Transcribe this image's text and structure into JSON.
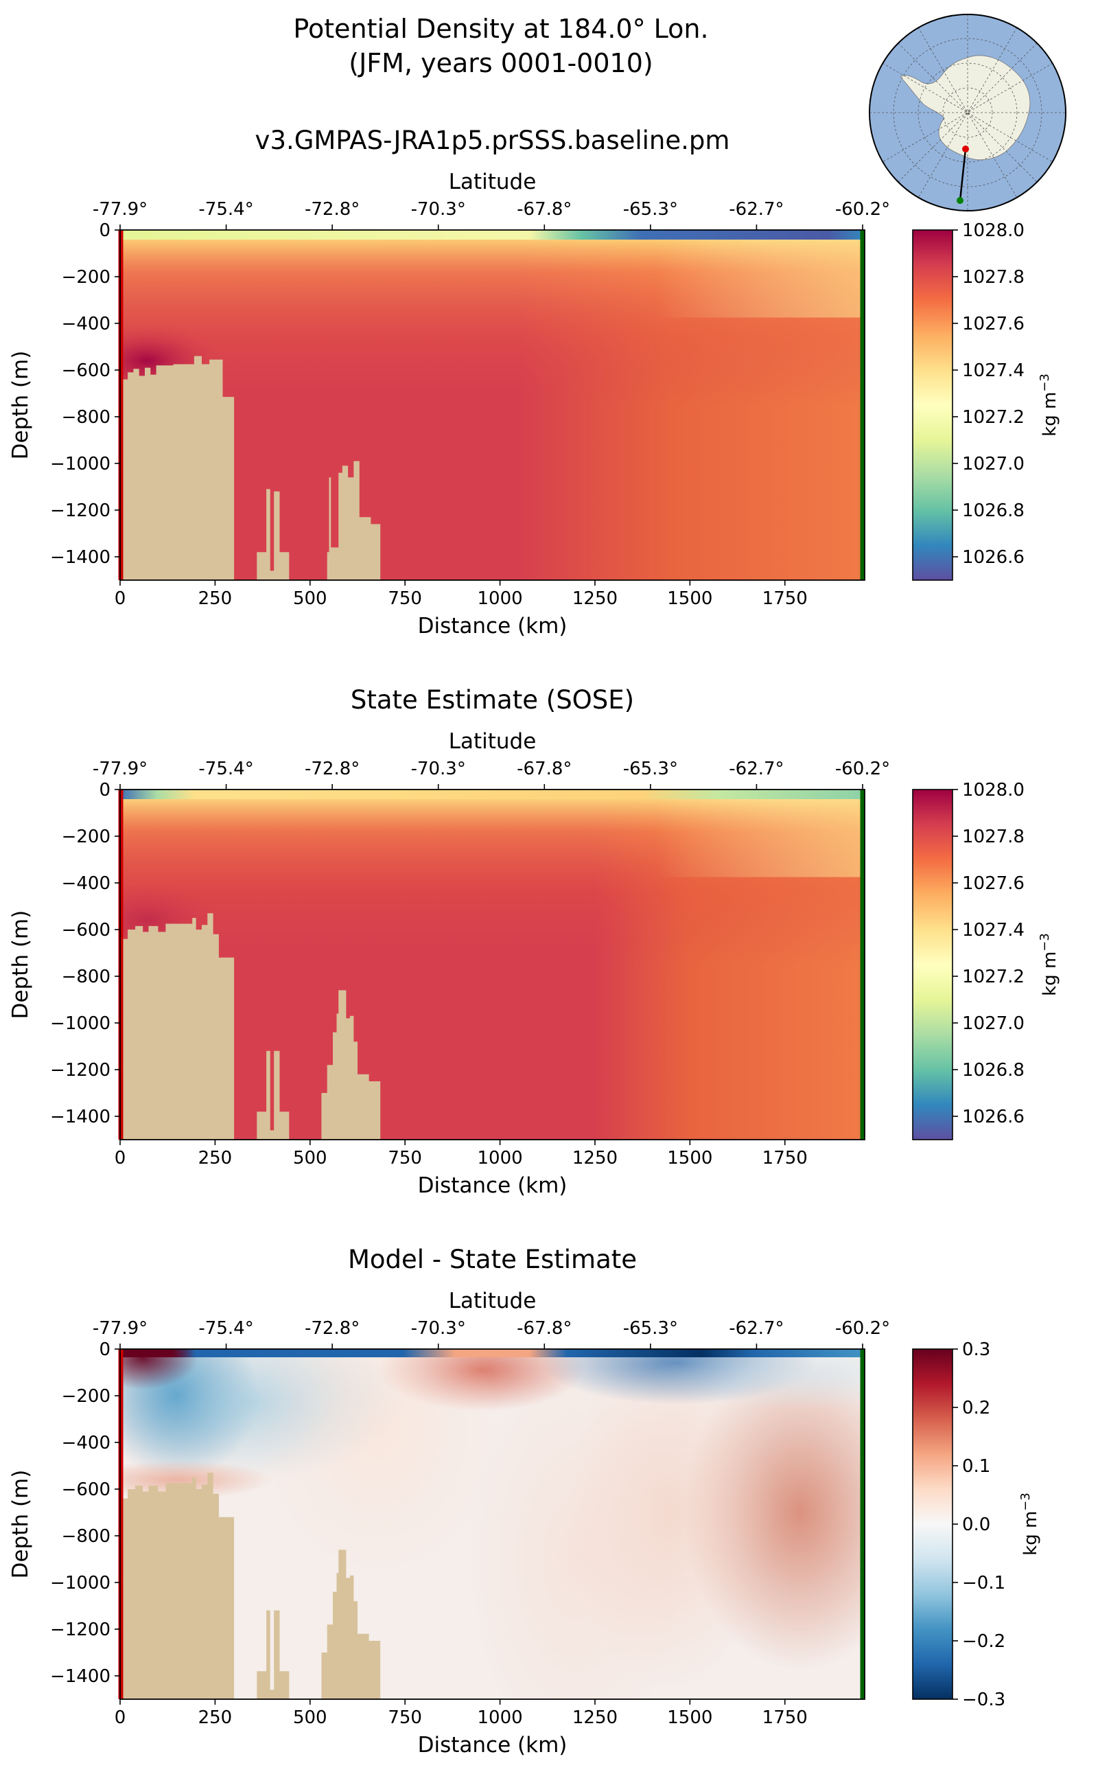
{
  "figure": {
    "title_line1": "Potential Density at 184.0° Lon.",
    "title_line2": "(JFM, years 0001-0010)"
  },
  "colors": {
    "bathymetry": "#d8c29b",
    "start_marker": "#cc0000",
    "end_marker": "#006400",
    "ocean": "#94b4dc",
    "land": "#f0f0e2"
  },
  "inset_map": {
    "projection": "south-polar-stereographic",
    "transect_start_lat": -77.9,
    "transect_end_lat": -60.2,
    "transect_lon": 184.0
  },
  "chart_data": [
    {
      "type": "heatmap",
      "title": "v3.GMPAS-JRA1p5.prSSS.baseline.pm",
      "xlabel": "Distance (km)",
      "ylabel": "Depth (m)",
      "x2label": "Latitude",
      "xlim": [
        0,
        1960
      ],
      "ylim": [
        -1500,
        0
      ],
      "xticks": [
        0,
        250,
        500,
        750,
        1000,
        1250,
        1500,
        1750
      ],
      "yticks": [
        0,
        -200,
        -400,
        -600,
        -800,
        -1000,
        -1200,
        -1400
      ],
      "ytick_labels": [
        "0",
        "−200",
        "−400",
        "−600",
        "−800",
        "−1000",
        "−1200",
        "−1400"
      ],
      "lat_tick_labels": [
        "-77.9°",
        "-75.4°",
        "-72.8°",
        "-70.3°",
        "-67.8°",
        "-65.3°",
        "-62.7°",
        "-60.2°"
      ],
      "colorbar": {
        "label": "kg m",
        "label_sup": "−3",
        "colormap": "Spectral_r",
        "range": [
          1026.5,
          1028.0
        ],
        "ticks": [
          1026.6,
          1026.8,
          1027.0,
          1027.2,
          1027.4,
          1027.6,
          1027.8,
          1028.0
        ],
        "tick_labels": [
          "1026.6",
          "1026.8",
          "1027.0",
          "1027.2",
          "1027.4",
          "1027.6",
          "1027.8",
          "1028.0"
        ]
      },
      "field": {
        "deep_value": 1027.8,
        "offshore_value": 1027.6,
        "shelf_dense_value": 1028.0,
        "surface_west": 1027.1,
        "surface_east": 1026.6,
        "transition_km": [
          1050,
          1450
        ]
      },
      "bathymetry": [
        [
          0,
          -640
        ],
        [
          20,
          -640
        ],
        [
          20,
          -610
        ],
        [
          35,
          -610
        ],
        [
          35,
          -595
        ],
        [
          50,
          -595
        ],
        [
          50,
          -625
        ],
        [
          65,
          -625
        ],
        [
          65,
          -590
        ],
        [
          80,
          -590
        ],
        [
          80,
          -620
        ],
        [
          95,
          -620
        ],
        [
          95,
          -580
        ],
        [
          140,
          -580
        ],
        [
          140,
          -575
        ],
        [
          195,
          -575
        ],
        [
          195,
          -540
        ],
        [
          215,
          -540
        ],
        [
          215,
          -575
        ],
        [
          235,
          -575
        ],
        [
          235,
          -555
        ],
        [
          270,
          -555
        ],
        [
          270,
          -715
        ],
        [
          300,
          -715
        ],
        [
          300,
          -1500
        ],
        [
          360,
          -1500
        ],
        [
          360,
          -1380
        ],
        [
          385,
          -1380
        ],
        [
          385,
          -1110
        ],
        [
          395,
          -1110
        ],
        [
          395,
          -1460
        ],
        [
          405,
          -1460
        ],
        [
          405,
          -1120
        ],
        [
          420,
          -1120
        ],
        [
          420,
          -1380
        ],
        [
          445,
          -1380
        ],
        [
          445,
          -1500
        ],
        [
          545,
          -1500
        ],
        [
          545,
          -1380
        ],
        [
          550,
          -1380
        ],
        [
          550,
          -1060
        ],
        [
          555,
          -1060
        ],
        [
          555,
          -1360
        ],
        [
          575,
          -1360
        ],
        [
          575,
          -1040
        ],
        [
          585,
          -1040
        ],
        [
          585,
          -1010
        ],
        [
          600,
          -1010
        ],
        [
          600,
          -1060
        ],
        [
          615,
          -1060
        ],
        [
          615,
          -990
        ],
        [
          630,
          -990
        ],
        [
          630,
          -1230
        ],
        [
          660,
          -1230
        ],
        [
          660,
          -1260
        ],
        [
          685,
          -1260
        ],
        [
          685,
          -1500
        ]
      ]
    },
    {
      "type": "heatmap",
      "title": "State Estimate (SOSE)",
      "xlabel": "Distance (km)",
      "ylabel": "Depth (m)",
      "x2label": "Latitude",
      "xlim": [
        0,
        1960
      ],
      "ylim": [
        -1500,
        0
      ],
      "xticks": [
        0,
        250,
        500,
        750,
        1000,
        1250,
        1500,
        1750
      ],
      "yticks": [
        0,
        -200,
        -400,
        -600,
        -800,
        -1000,
        -1200,
        -1400
      ],
      "ytick_labels": [
        "0",
        "−200",
        "−400",
        "−600",
        "−800",
        "−1000",
        "−1200",
        "−1400"
      ],
      "lat_tick_labels": [
        "-77.9°",
        "-75.4°",
        "-72.8°",
        "-70.3°",
        "-67.8°",
        "-65.3°",
        "-62.7°",
        "-60.2°"
      ],
      "colorbar": {
        "label": "kg m",
        "label_sup": "−3",
        "colormap": "Spectral_r",
        "range": [
          1026.5,
          1028.0
        ],
        "ticks": [
          1026.6,
          1026.8,
          1027.0,
          1027.2,
          1027.4,
          1027.6,
          1027.8,
          1028.0
        ],
        "tick_labels": [
          "1026.6",
          "1026.8",
          "1027.0",
          "1027.2",
          "1027.4",
          "1027.6",
          "1027.8",
          "1028.0"
        ]
      },
      "field": {
        "deep_value": 1027.8,
        "offshore_value": 1027.55,
        "shelf_dense_value": 1027.85,
        "surface_west": 1026.9,
        "surface_east": 1026.95,
        "transition_km": [
          1250,
          1500
        ]
      },
      "bathymetry": [
        [
          0,
          -640
        ],
        [
          20,
          -640
        ],
        [
          20,
          -600
        ],
        [
          40,
          -600
        ],
        [
          40,
          -585
        ],
        [
          60,
          -585
        ],
        [
          60,
          -610
        ],
        [
          75,
          -610
        ],
        [
          75,
          -585
        ],
        [
          100,
          -585
        ],
        [
          100,
          -610
        ],
        [
          120,
          -610
        ],
        [
          120,
          -575
        ],
        [
          190,
          -575
        ],
        [
          190,
          -550
        ],
        [
          200,
          -550
        ],
        [
          200,
          -600
        ],
        [
          215,
          -600
        ],
        [
          215,
          -580
        ],
        [
          230,
          -580
        ],
        [
          230,
          -530
        ],
        [
          245,
          -530
        ],
        [
          245,
          -620
        ],
        [
          260,
          -620
        ],
        [
          260,
          -720
        ],
        [
          300,
          -720
        ],
        [
          300,
          -1500
        ],
        [
          360,
          -1500
        ],
        [
          360,
          -1380
        ],
        [
          385,
          -1380
        ],
        [
          385,
          -1120
        ],
        [
          395,
          -1120
        ],
        [
          395,
          -1460
        ],
        [
          405,
          -1460
        ],
        [
          405,
          -1120
        ],
        [
          420,
          -1120
        ],
        [
          420,
          -1380
        ],
        [
          445,
          -1380
        ],
        [
          445,
          -1500
        ],
        [
          530,
          -1500
        ],
        [
          530,
          -1300
        ],
        [
          545,
          -1300
        ],
        [
          545,
          -1180
        ],
        [
          560,
          -1180
        ],
        [
          560,
          -1040
        ],
        [
          570,
          -1040
        ],
        [
          570,
          -960
        ],
        [
          575,
          -960
        ],
        [
          575,
          -860
        ],
        [
          595,
          -860
        ],
        [
          595,
          -980
        ],
        [
          605,
          -980
        ],
        [
          605,
          -970
        ],
        [
          615,
          -970
        ],
        [
          615,
          -1080
        ],
        [
          625,
          -1080
        ],
        [
          625,
          -1220
        ],
        [
          655,
          -1220
        ],
        [
          655,
          -1250
        ],
        [
          685,
          -1250
        ],
        [
          685,
          -1500
        ]
      ]
    },
    {
      "type": "heatmap",
      "title": "Model - State Estimate",
      "xlabel": "Distance (km)",
      "ylabel": "Depth (m)",
      "x2label": "Latitude",
      "xlim": [
        0,
        1960
      ],
      "ylim": [
        -1500,
        0
      ],
      "xticks": [
        0,
        250,
        500,
        750,
        1000,
        1250,
        1500,
        1750
      ],
      "yticks": [
        0,
        -200,
        -400,
        -600,
        -800,
        -1000,
        -1200,
        -1400
      ],
      "ytick_labels": [
        "0",
        "−200",
        "−400",
        "−600",
        "−800",
        "−1000",
        "−1200",
        "−1400"
      ],
      "lat_tick_labels": [
        "-77.9°",
        "-75.4°",
        "-72.8°",
        "-70.3°",
        "-67.8°",
        "-65.3°",
        "-62.7°",
        "-60.2°"
      ],
      "colorbar": {
        "label": "kg m",
        "label_sup": "−3",
        "colormap": "RdBu_r",
        "range": [
          -0.3,
          0.3
        ],
        "ticks": [
          -0.3,
          -0.2,
          -0.1,
          0.0,
          0.1,
          0.2,
          0.3
        ],
        "tick_labels": [
          "−0.3",
          "−0.2",
          "−0.1",
          "0.0",
          "0.1",
          "0.2",
          "0.3"
        ]
      },
      "field": {
        "surface_negative": -0.25,
        "shelf_negative": -0.18,
        "positive_near_surface": 0.12,
        "deep_positive_east": 0.12,
        "shelf_positive": 0.05
      },
      "bathymetry": [
        [
          0,
          -640
        ],
        [
          20,
          -640
        ],
        [
          20,
          -600
        ],
        [
          40,
          -600
        ],
        [
          40,
          -585
        ],
        [
          60,
          -585
        ],
        [
          60,
          -610
        ],
        [
          75,
          -610
        ],
        [
          75,
          -585
        ],
        [
          100,
          -585
        ],
        [
          100,
          -610
        ],
        [
          120,
          -610
        ],
        [
          120,
          -575
        ],
        [
          190,
          -575
        ],
        [
          190,
          -550
        ],
        [
          200,
          -550
        ],
        [
          200,
          -600
        ],
        [
          215,
          -600
        ],
        [
          215,
          -580
        ],
        [
          230,
          -580
        ],
        [
          230,
          -530
        ],
        [
          245,
          -530
        ],
        [
          245,
          -620
        ],
        [
          260,
          -620
        ],
        [
          260,
          -720
        ],
        [
          300,
          -720
        ],
        [
          300,
          -1500
        ],
        [
          360,
          -1500
        ],
        [
          360,
          -1380
        ],
        [
          385,
          -1380
        ],
        [
          385,
          -1120
        ],
        [
          395,
          -1120
        ],
        [
          395,
          -1460
        ],
        [
          405,
          -1460
        ],
        [
          405,
          -1120
        ],
        [
          420,
          -1120
        ],
        [
          420,
          -1380
        ],
        [
          445,
          -1380
        ],
        [
          445,
          -1500
        ],
        [
          530,
          -1500
        ],
        [
          530,
          -1300
        ],
        [
          545,
          -1300
        ],
        [
          545,
          -1180
        ],
        [
          560,
          -1180
        ],
        [
          560,
          -1040
        ],
        [
          570,
          -1040
        ],
        [
          570,
          -960
        ],
        [
          575,
          -960
        ],
        [
          575,
          -860
        ],
        [
          595,
          -860
        ],
        [
          595,
          -980
        ],
        [
          605,
          -980
        ],
        [
          605,
          -970
        ],
        [
          615,
          -970
        ],
        [
          615,
          -1080
        ],
        [
          625,
          -1080
        ],
        [
          625,
          -1220
        ],
        [
          655,
          -1220
        ],
        [
          655,
          -1250
        ],
        [
          685,
          -1250
        ],
        [
          685,
          -1500
        ]
      ]
    }
  ]
}
